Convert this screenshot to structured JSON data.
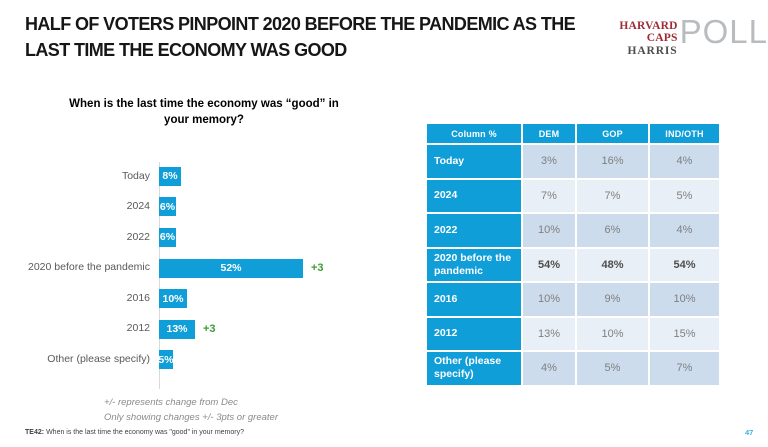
{
  "header": {
    "title": "HALF OF VOTERS PINPOINT 2020 BEFORE THE PANDEMIC AS THE LAST TIME THE ECONOMY WAS GOOD",
    "logo": {
      "line1": "HARVARD CAPS",
      "line2": "HARRIS",
      "poll": "POLL"
    }
  },
  "chart_data": {
    "type": "bar",
    "orientation": "horizontal",
    "title": "When is the last time the economy was “good” in your memory?",
    "categories": [
      "Today",
      "2024",
      "2022",
      "2020 before the pandemic",
      "2016",
      "2012",
      "Other (please specify)"
    ],
    "values": [
      8,
      6,
      6,
      52,
      10,
      13,
      5
    ],
    "value_labels": [
      "8%",
      "6%",
      "6%",
      "52%",
      "10%",
      "13%",
      "5%"
    ],
    "changes": [
      "",
      "",
      "",
      "+3",
      "",
      "+3",
      ""
    ],
    "xlim": [
      0,
      52
    ],
    "grid": false,
    "bar_color": "#0f9ed8",
    "change_color": "#3d9b35",
    "notes": [
      "+/- represents change from Dec",
      "Only showing changes +/- 3pts or greater"
    ]
  },
  "table": {
    "header": [
      "Column %",
      "DEM",
      "GOP",
      "IND/OTH"
    ],
    "rows": [
      {
        "label": "Today",
        "values": [
          "3%",
          "16%",
          "4%"
        ],
        "bold": false
      },
      {
        "label": "2024",
        "values": [
          "7%",
          "7%",
          "5%"
        ],
        "bold": false
      },
      {
        "label": "2022",
        "values": [
          "10%",
          "6%",
          "4%"
        ],
        "bold": false
      },
      {
        "label": "2020 before the pandemic",
        "values": [
          "54%",
          "48%",
          "54%"
        ],
        "bold": true
      },
      {
        "label": "2016",
        "values": [
          "10%",
          "9%",
          "10%"
        ],
        "bold": false
      },
      {
        "label": "2012",
        "values": [
          "13%",
          "10%",
          "15%"
        ],
        "bold": false
      },
      {
        "label": "Other (please specify)",
        "values": [
          "4%",
          "5%",
          "7%"
        ],
        "bold": false
      }
    ]
  },
  "footer": {
    "source_prefix": "TE42:",
    "source_text": "When is the last time the economy was \"good\" in your memory?",
    "page_number": "47"
  },
  "colors": {
    "accent_blue": "#0f9ed8",
    "change_green": "#3d9b35",
    "row_shade_dark": "#ccdcec",
    "row_shade_light": "#e9eff7",
    "logo_red": "#9e2c35",
    "logo_gray": "#b9bcbe"
  }
}
